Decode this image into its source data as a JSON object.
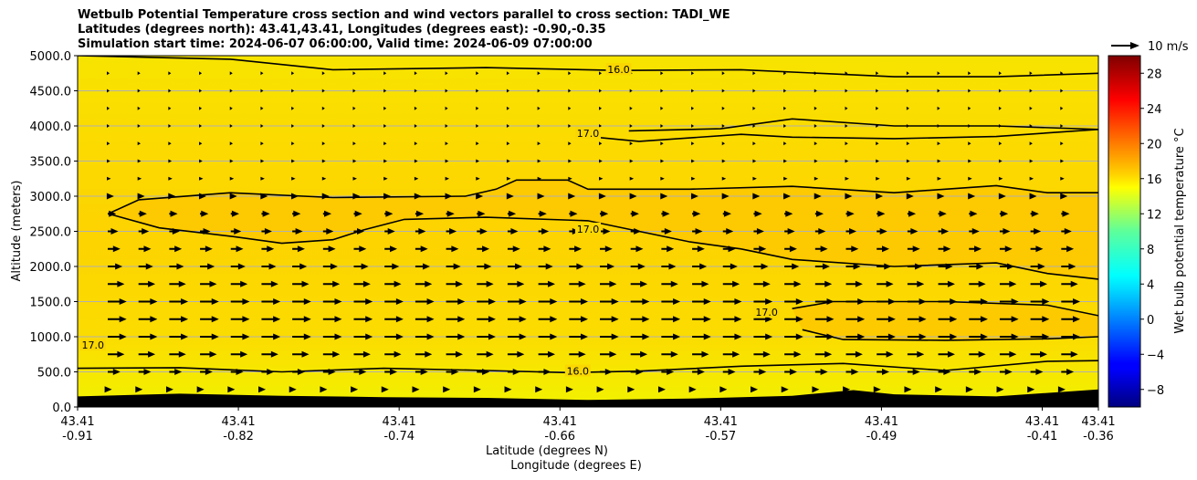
{
  "chart_data": {
    "type": "heatmap",
    "title_lines": [
      "Wetbulb Potential Temperature cross section and wind vectors parallel to cross section: TADI_WE",
      "Latitudes (degrees north): 43.41,43.41, Longitudes (degrees east): -0.90,-0.35",
      "Simulation start time: 2024-06-07 06:00:00, Valid time: 2024-06-09 07:00:00"
    ],
    "ylabel": "Altitude (meters)",
    "xlabel_lines": [
      "Latitude (degrees N)",
      "Longitude (degrees E)"
    ],
    "ylim": [
      0,
      5000
    ],
    "y_ticks": [
      0,
      500,
      1000,
      1500,
      2000,
      2500,
      3000,
      3500,
      4000,
      4500,
      5000
    ],
    "y_tick_labels": [
      "0.0",
      "500.0",
      "1000.0",
      "1500.0",
      "2000.0",
      "2500.0",
      "3000.0",
      "3500.0",
      "4000.0",
      "4500.0",
      "5000.0"
    ],
    "x_ticks": [
      {
        "lat": "43.41",
        "lon": "-0.91"
      },
      {
        "lat": "43.41",
        "lon": "-0.82"
      },
      {
        "lat": "43.41",
        "lon": "-0.74"
      },
      {
        "lat": "43.41",
        "lon": "-0.66"
      },
      {
        "lat": "43.41",
        "lon": "-0.57"
      },
      {
        "lat": "43.41",
        "lon": "-0.49"
      },
      {
        "lat": "43.41",
        "lon": "-0.41"
      },
      {
        "lat": "43.41",
        "lon": "-0.36"
      }
    ],
    "x_tick_fraction": [
      0,
      0.1575,
      0.315,
      0.4725,
      0.63,
      0.7875,
      0.945,
      1.0
    ],
    "grid": "horizontal",
    "colorbar": {
      "label": "Wet bulb potential temperature $^\\circ$C",
      "label_display": "Wet bulb potential temperature °C",
      "min": -10,
      "max": 30,
      "ticks": [
        -8,
        -4,
        0,
        4,
        8,
        12,
        16,
        20,
        24,
        28
      ],
      "tick_labels": [
        "−8",
        "−4",
        "0",
        "4",
        "8",
        "12",
        "16",
        "20",
        "24",
        "28"
      ],
      "colormap": "jet"
    },
    "wind_key": {
      "label": "10 m/s",
      "speed": 10
    },
    "background_field_c": 16.5,
    "warm_pockets_c": 17.2,
    "contour_labels": [
      {
        "text": "16.0",
        "x_frac": 0.53,
        "alt": 4790
      },
      {
        "text": "17.0",
        "x_frac": 0.5,
        "alt": 3880
      },
      {
        "text": "17.0",
        "x_frac": 0.5,
        "alt": 2520
      },
      {
        "text": "17.0",
        "x_frac": 0.675,
        "alt": 1340
      },
      {
        "text": "17.0",
        "x_frac": 0.015,
        "alt": 870
      },
      {
        "text": "16.0",
        "x_frac": 0.49,
        "alt": 500
      }
    ],
    "contours": [
      {
        "value": 16.0,
        "points": [
          [
            0.0,
            5000
          ],
          [
            0.15,
            4950
          ],
          [
            0.25,
            4800
          ],
          [
            0.4,
            4830
          ],
          [
            0.53,
            4790
          ],
          [
            0.65,
            4800
          ],
          [
            0.8,
            4700
          ],
          [
            0.9,
            4700
          ],
          [
            1.0,
            4750
          ]
        ]
      },
      {
        "value": 17.0,
        "points": [
          [
            0.5,
            3850
          ],
          [
            0.55,
            3780
          ],
          [
            0.65,
            3880
          ],
          [
            0.7,
            3840
          ],
          [
            0.8,
            3820
          ],
          [
            0.9,
            3850
          ],
          [
            1.0,
            3950
          ]
        ]
      },
      {
        "value": 17.0,
        "points": [
          [
            0.54,
            3930
          ],
          [
            0.63,
            3960
          ],
          [
            0.7,
            4100
          ],
          [
            0.8,
            4000
          ],
          [
            0.9,
            4000
          ],
          [
            1.0,
            3950
          ]
        ]
      },
      {
        "value": 17.0,
        "points": [
          [
            0.03,
            2750
          ],
          [
            0.06,
            2950
          ],
          [
            0.15,
            3050
          ],
          [
            0.25,
            2980
          ],
          [
            0.38,
            3000
          ],
          [
            0.41,
            3100
          ],
          [
            0.43,
            3230
          ],
          [
            0.48,
            3230
          ],
          [
            0.5,
            3100
          ],
          [
            0.6,
            3100
          ],
          [
            0.7,
            3140
          ],
          [
            0.8,
            3050
          ],
          [
            0.85,
            3100
          ],
          [
            0.9,
            3150
          ],
          [
            0.95,
            3050
          ],
          [
            1.0,
            3050
          ]
        ]
      },
      {
        "value": 17.0,
        "points": [
          [
            0.03,
            2750
          ],
          [
            0.08,
            2550
          ],
          [
            0.15,
            2430
          ],
          [
            0.2,
            2330
          ],
          [
            0.25,
            2380
          ],
          [
            0.28,
            2520
          ],
          [
            0.32,
            2670
          ],
          [
            0.4,
            2700
          ],
          [
            0.5,
            2650
          ],
          [
            0.55,
            2500
          ],
          [
            0.6,
            2350
          ],
          [
            0.65,
            2250
          ],
          [
            0.7,
            2100
          ],
          [
            0.8,
            2000
          ],
          [
            0.9,
            2050
          ],
          [
            0.95,
            1900
          ],
          [
            1.0,
            1820
          ]
        ]
      },
      {
        "value": 17.0,
        "points": [
          [
            0.7,
            1400
          ],
          [
            0.74,
            1500
          ],
          [
            0.85,
            1500
          ],
          [
            0.95,
            1450
          ],
          [
            1.0,
            1300
          ]
        ]
      },
      {
        "value": 17.0,
        "points": [
          [
            0.71,
            1100
          ],
          [
            0.75,
            960
          ],
          [
            0.85,
            950
          ],
          [
            0.95,
            970
          ],
          [
            1.0,
            1000
          ]
        ]
      },
      {
        "value": 16.0,
        "points": [
          [
            0.0,
            550
          ],
          [
            0.1,
            560
          ],
          [
            0.2,
            500
          ],
          [
            0.3,
            550
          ],
          [
            0.4,
            520
          ],
          [
            0.48,
            490
          ],
          [
            0.55,
            510
          ],
          [
            0.65,
            580
          ],
          [
            0.75,
            620
          ],
          [
            0.85,
            520
          ],
          [
            0.95,
            650
          ],
          [
            1.0,
            660
          ]
        ]
      }
    ],
    "terrain_altitude_m": [
      [
        0.0,
        150
      ],
      [
        0.05,
        170
      ],
      [
        0.1,
        190
      ],
      [
        0.2,
        160
      ],
      [
        0.3,
        140
      ],
      [
        0.4,
        130
      ],
      [
        0.5,
        100
      ],
      [
        0.6,
        120
      ],
      [
        0.7,
        160
      ],
      [
        0.76,
        240
      ],
      [
        0.8,
        180
      ],
      [
        0.9,
        150
      ],
      [
        1.0,
        250
      ]
    ],
    "wind_vectors": {
      "altitudes_m": [
        250,
        500,
        750,
        1000,
        1250,
        1500,
        1750,
        2000,
        2250,
        2500,
        2750,
        3000,
        3250,
        3500,
        3750,
        4000,
        4250,
        4500,
        4750
      ],
      "u_ms": [
        2,
        6,
        8,
        9,
        9,
        9,
        8,
        7,
        6,
        5,
        4,
        3,
        1.5,
        1.2,
        1.0,
        0.8,
        0.6,
        0.4,
        0.3
      ],
      "columns": 32
    }
  }
}
